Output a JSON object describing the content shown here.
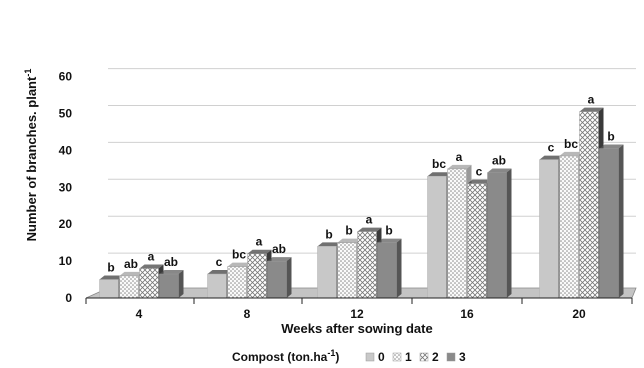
{
  "chart_data": {
    "type": "bar",
    "title": "",
    "xlabel": "Weeks after sowing date",
    "ylabel": "Number of branches. plant",
    "ylabel_superscript": "-1",
    "ylim": [
      0,
      60
    ],
    "yticks": [
      0,
      10,
      20,
      30,
      40,
      50,
      60
    ],
    "categories": [
      "4",
      "8",
      "12",
      "16",
      "20"
    ],
    "series": [
      {
        "name": "0",
        "values": [
          5.0,
          6.5,
          14.0,
          33.0,
          37.5
        ],
        "letters": [
          "b",
          "c",
          "b",
          "bc",
          "c"
        ]
      },
      {
        "name": "1",
        "values": [
          6.0,
          8.5,
          15.0,
          35.0,
          38.5
        ],
        "letters": [
          "ab",
          "bc",
          "b",
          "a",
          "bc"
        ]
      },
      {
        "name": "2",
        "values": [
          8.0,
          12.0,
          18.0,
          31.0,
          50.5
        ],
        "letters": [
          "a",
          "a",
          "a",
          "c",
          "a"
        ]
      },
      {
        "name": "3",
        "values": [
          6.5,
          10.0,
          15.0,
          34.0,
          40.5
        ],
        "letters": [
          "ab",
          "ab",
          "b",
          "ab",
          "b"
        ]
      }
    ],
    "grid": true,
    "legend": {
      "title": "Compost (ton.ha",
      "title_superscript": "-1",
      "title_suffix": ")",
      "position": "bottom"
    }
  },
  "colors": {
    "series": [
      "#c8c8c8",
      "#f4f4f4",
      "#f4f4f4",
      "#8a8a8a"
    ],
    "series_side": [
      "#333333",
      "#9a9a9a",
      "#3a3a3a",
      "#555555"
    ],
    "floor": "#c4c4c4",
    "grid": "#d0d0d0"
  }
}
